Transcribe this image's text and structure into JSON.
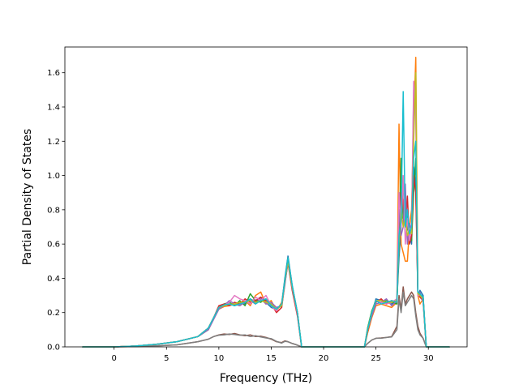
{
  "chart_data": {
    "type": "line",
    "title": "",
    "xlabel": "Frequency (THz)",
    "ylabel": "Partial Density of States",
    "xlim": [
      -4.7,
      33.7
    ],
    "ylim": [
      0.0,
      1.75
    ],
    "xticks": [
      0,
      5,
      10,
      15,
      20,
      25,
      30
    ],
    "yticks": [
      0.0,
      0.2,
      0.4,
      0.6,
      0.8,
      1.0,
      1.2,
      1.4,
      1.6
    ],
    "grid": false,
    "legend": "none",
    "colors": [
      "#1f77b4",
      "#ff7f0e",
      "#2ca02c",
      "#d62728",
      "#9467bd",
      "#8c564b",
      "#e377c2",
      "#7f7f7f",
      "#bcbd22",
      "#17becf"
    ],
    "series": [
      {
        "x": [
          -3,
          0,
          2,
          4,
          6,
          8,
          9,
          9.5,
          10,
          10.5,
          11,
          11.5,
          12,
          12.5,
          13,
          13.5,
          14,
          14.5,
          15,
          15.5,
          16,
          16.3,
          16.6,
          17,
          17.5,
          17.9,
          18.5,
          23.9,
          24.2,
          24.6,
          25,
          25.5,
          26,
          26.5,
          27,
          27.2,
          27.4,
          27.6,
          27.8,
          28,
          28.2,
          28.4,
          28.6,
          28.8,
          29,
          29.2,
          29.5,
          29.8,
          30.2,
          32
        ],
        "y": [
          0,
          0,
          0.005,
          0.015,
          0.03,
          0.06,
          0.11,
          0.17,
          0.23,
          0.24,
          0.25,
          0.245,
          0.26,
          0.25,
          0.28,
          0.26,
          0.29,
          0.26,
          0.23,
          0.22,
          0.25,
          0.4,
          0.53,
          0.36,
          0.2,
          0,
          0,
          0,
          0.1,
          0.2,
          0.28,
          0.27,
          0.26,
          0.25,
          0.27,
          0.52,
          0.7,
          0.95,
          0.8,
          0.75,
          0.65,
          0.6,
          1.05,
          0.95,
          0.3,
          0.33,
          0.3,
          0,
          0,
          0
        ]
      },
      {
        "x": [
          -3,
          0,
          2,
          4,
          6,
          8,
          9,
          9.5,
          10,
          10.5,
          11,
          11.5,
          12,
          12.5,
          13,
          13.5,
          14,
          14.5,
          15,
          15.5,
          16,
          16.3,
          16.6,
          17,
          17.5,
          17.9,
          18.5,
          23.9,
          24.2,
          24.6,
          25,
          25.5,
          26,
          26.5,
          27,
          27.2,
          27.4,
          27.6,
          27.8,
          28,
          28.2,
          28.4,
          28.6,
          28.8,
          29,
          29.2,
          29.5,
          29.8,
          30.2,
          32
        ],
        "y": [
          0,
          0,
          0.005,
          0.015,
          0.03,
          0.06,
          0.11,
          0.17,
          0.22,
          0.235,
          0.24,
          0.25,
          0.24,
          0.27,
          0.24,
          0.3,
          0.32,
          0.25,
          0.27,
          0.21,
          0.26,
          0.38,
          0.5,
          0.34,
          0.19,
          0,
          0,
          0,
          0.08,
          0.17,
          0.24,
          0.25,
          0.24,
          0.23,
          0.26,
          1.3,
          0.6,
          0.55,
          0.5,
          0.5,
          0.7,
          0.8,
          1.3,
          1.69,
          0.3,
          0.25,
          0.28,
          0,
          0,
          0
        ]
      },
      {
        "x": [
          -3,
          0,
          2,
          4,
          6,
          8,
          9,
          9.5,
          10,
          10.5,
          11,
          11.5,
          12,
          12.5,
          13,
          13.5,
          14,
          14.5,
          15,
          15.5,
          16,
          16.3,
          16.6,
          17,
          17.5,
          17.9,
          18.5,
          23.9,
          24.2,
          24.6,
          25,
          25.5,
          26,
          26.5,
          27,
          27.2,
          27.4,
          27.6,
          27.8,
          28,
          28.2,
          28.4,
          28.6,
          28.8,
          29,
          29.2,
          29.5,
          29.8,
          30.2,
          32
        ],
        "y": [
          0,
          0,
          0.005,
          0.015,
          0.03,
          0.06,
          0.1,
          0.17,
          0.23,
          0.25,
          0.26,
          0.24,
          0.27,
          0.24,
          0.31,
          0.27,
          0.26,
          0.28,
          0.24,
          0.22,
          0.24,
          0.39,
          0.52,
          0.35,
          0.2,
          0,
          0,
          0,
          0.11,
          0.21,
          0.27,
          0.26,
          0.27,
          0.26,
          0.25,
          0.6,
          1.1,
          0.75,
          0.85,
          0.7,
          0.65,
          0.62,
          0.9,
          1.1,
          0.32,
          0.3,
          0.29,
          0,
          0,
          0
        ]
      },
      {
        "x": [
          -3,
          0,
          2,
          4,
          6,
          8,
          9,
          9.5,
          10,
          10.5,
          11,
          11.5,
          12,
          12.5,
          13,
          13.5,
          14,
          14.5,
          15,
          15.5,
          16,
          16.3,
          16.6,
          17,
          17.5,
          17.9,
          18.5,
          23.9,
          24.2,
          24.6,
          25,
          25.5,
          26,
          26.5,
          27,
          27.2,
          27.4,
          27.6,
          27.8,
          28,
          28.2,
          28.4,
          28.6,
          28.8,
          29,
          29.2,
          29.5,
          29.8,
          30.2,
          32
        ],
        "y": [
          0,
          0,
          0.005,
          0.015,
          0.03,
          0.06,
          0.11,
          0.17,
          0.24,
          0.25,
          0.24,
          0.26,
          0.25,
          0.28,
          0.26,
          0.27,
          0.29,
          0.27,
          0.25,
          0.2,
          0.23,
          0.37,
          0.49,
          0.33,
          0.18,
          0,
          0,
          0,
          0.09,
          0.19,
          0.26,
          0.28,
          0.25,
          0.27,
          0.26,
          0.7,
          0.9,
          0.85,
          0.7,
          0.88,
          0.6,
          0.65,
          1.0,
          0.9,
          0.31,
          0.29,
          0.27,
          0,
          0,
          0
        ]
      },
      {
        "x": [
          -3,
          0,
          2,
          4,
          6,
          8,
          9,
          9.5,
          10,
          10.5,
          11,
          11.5,
          12,
          12.5,
          13,
          13.5,
          14,
          14.5,
          15,
          15.5,
          16,
          16.3,
          16.6,
          17,
          17.5,
          17.9,
          18.5,
          23.9,
          24.2,
          24.6,
          25,
          25.5,
          26,
          26.5,
          27,
          27.2,
          27.4,
          27.6,
          27.8,
          28,
          28.2,
          28.4,
          28.6,
          28.8,
          29,
          29.2,
          29.5,
          29.8,
          30.2,
          32
        ],
        "y": [
          0,
          0,
          0.005,
          0.015,
          0.03,
          0.06,
          0.1,
          0.16,
          0.22,
          0.24,
          0.27,
          0.25,
          0.24,
          0.26,
          0.27,
          0.25,
          0.28,
          0.25,
          0.26,
          0.23,
          0.24,
          0.36,
          0.5,
          0.34,
          0.2,
          0,
          0,
          0,
          0.1,
          0.18,
          0.25,
          0.26,
          0.28,
          0.24,
          0.27,
          0.8,
          0.65,
          0.7,
          0.95,
          0.6,
          0.72,
          0.68,
          1.5,
          1.45,
          0.3,
          0.32,
          0.26,
          0,
          0,
          0
        ]
      },
      {
        "x": [
          -3,
          0,
          2,
          4,
          6,
          8,
          9,
          9.5,
          10,
          10.5,
          11,
          11.5,
          12,
          12.5,
          13,
          13.5,
          14,
          14.5,
          15,
          15.5,
          16,
          16.3,
          16.6,
          17,
          17.5,
          17.9,
          18.5,
          23.9,
          24.2,
          24.6,
          25,
          25.5,
          26,
          26.5,
          27,
          27.2,
          27.4,
          27.6,
          27.8,
          28,
          28.2,
          28.4,
          28.6,
          28.8,
          29,
          29.2,
          29.5,
          29.8,
          30.2,
          32
        ],
        "y": [
          0,
          0,
          0.002,
          0.006,
          0.012,
          0.03,
          0.045,
          0.06,
          0.07,
          0.075,
          0.072,
          0.078,
          0.07,
          0.065,
          0.07,
          0.06,
          0.062,
          0.055,
          0.045,
          0.03,
          0.025,
          0.035,
          0.03,
          0.02,
          0.01,
          0,
          0,
          0,
          0.02,
          0.04,
          0.05,
          0.052,
          0.055,
          0.06,
          0.12,
          0.3,
          0.22,
          0.35,
          0.25,
          0.28,
          0.3,
          0.32,
          0.3,
          0.2,
          0.12,
          0.08,
          0.05,
          0,
          0,
          0
        ]
      },
      {
        "x": [
          -3,
          0,
          2,
          4,
          6,
          8,
          9,
          9.5,
          10,
          10.5,
          11,
          11.5,
          12,
          12.5,
          13,
          13.5,
          14,
          14.5,
          15,
          15.5,
          16,
          16.3,
          16.6,
          17,
          17.5,
          17.9,
          18.5,
          23.9,
          24.2,
          24.6,
          25,
          25.5,
          26,
          26.5,
          27,
          27.2,
          27.4,
          27.6,
          27.8,
          28,
          28.2,
          28.4,
          28.6,
          28.8,
          29,
          29.2,
          29.5,
          29.8,
          30.2,
          32
        ],
        "y": [
          0,
          0,
          0.005,
          0.015,
          0.03,
          0.06,
          0.11,
          0.17,
          0.23,
          0.24,
          0.26,
          0.3,
          0.28,
          0.27,
          0.25,
          0.29,
          0.27,
          0.3,
          0.24,
          0.21,
          0.25,
          0.38,
          0.51,
          0.35,
          0.19,
          0,
          0,
          0,
          0.1,
          0.2,
          0.27,
          0.26,
          0.25,
          0.26,
          0.28,
          0.9,
          0.7,
          1.0,
          0.6,
          0.75,
          0.62,
          0.7,
          1.55,
          1.35,
          0.3,
          0.3,
          0.28,
          0,
          0,
          0
        ]
      },
      {
        "x": [
          -3,
          0,
          2,
          4,
          6,
          8,
          9,
          9.5,
          10,
          10.5,
          11,
          11.5,
          12,
          12.5,
          13,
          13.5,
          14,
          14.5,
          15,
          15.5,
          16,
          16.3,
          16.6,
          17,
          17.5,
          17.9,
          18.5,
          23.9,
          24.2,
          24.6,
          25,
          25.5,
          26,
          26.5,
          27,
          27.2,
          27.4,
          27.6,
          27.8,
          28,
          28.2,
          28.4,
          28.6,
          28.8,
          29,
          29.2,
          29.5,
          29.8,
          30.2,
          32
        ],
        "y": [
          0,
          0,
          0.002,
          0.006,
          0.012,
          0.03,
          0.045,
          0.06,
          0.068,
          0.07,
          0.075,
          0.072,
          0.068,
          0.07,
          0.06,
          0.065,
          0.058,
          0.052,
          0.048,
          0.032,
          0.022,
          0.032,
          0.03,
          0.02,
          0.01,
          0,
          0,
          0,
          0.02,
          0.04,
          0.05,
          0.05,
          0.055,
          0.058,
          0.1,
          0.28,
          0.2,
          0.32,
          0.24,
          0.26,
          0.28,
          0.3,
          0.28,
          0.18,
          0.1,
          0.07,
          0.05,
          0,
          0,
          0
        ]
      },
      {
        "x": [
          -3,
          0,
          2,
          4,
          6,
          8,
          9,
          9.5,
          10,
          10.5,
          11,
          11.5,
          12,
          12.5,
          13,
          13.5,
          14,
          14.5,
          15,
          15.5,
          16,
          16.3,
          16.6,
          17,
          17.5,
          17.9,
          18.5,
          23.9,
          24.2,
          24.6,
          25,
          25.5,
          26,
          26.5,
          27,
          27.2,
          27.4,
          27.6,
          27.8,
          28,
          28.2,
          28.4,
          28.6,
          28.8,
          29,
          29.2,
          29.5,
          29.8,
          30.2,
          32
        ],
        "y": [
          0,
          0,
          0.005,
          0.015,
          0.03,
          0.06,
          0.11,
          0.17,
          0.23,
          0.24,
          0.25,
          0.25,
          0.26,
          0.26,
          0.27,
          0.26,
          0.27,
          0.26,
          0.25,
          0.22,
          0.24,
          0.38,
          0.5,
          0.35,
          0.2,
          0,
          0,
          0,
          0.1,
          0.2,
          0.27,
          0.27,
          0.26,
          0.26,
          0.27,
          0.6,
          0.8,
          0.7,
          0.75,
          0.65,
          0.68,
          0.66,
          1.2,
          1.6,
          0.31,
          0.3,
          0.28,
          0,
          0,
          0
        ]
      },
      {
        "x": [
          -3,
          0,
          2,
          4,
          6,
          8,
          9,
          9.5,
          10,
          10.5,
          11,
          11.5,
          12,
          12.5,
          13,
          13.5,
          14,
          14.5,
          15,
          15.5,
          16,
          16.3,
          16.6,
          17,
          17.5,
          17.9,
          18.5,
          23.9,
          24.2,
          24.6,
          25,
          25.5,
          26,
          26.5,
          27,
          27.2,
          27.4,
          27.6,
          27.8,
          28,
          28.2,
          28.4,
          28.6,
          28.8,
          29,
          29.2,
          29.5,
          29.8,
          30.2,
          32
        ],
        "y": [
          0,
          0,
          0.005,
          0.015,
          0.03,
          0.06,
          0.11,
          0.17,
          0.23,
          0.245,
          0.25,
          0.24,
          0.25,
          0.26,
          0.28,
          0.25,
          0.27,
          0.28,
          0.24,
          0.22,
          0.25,
          0.39,
          0.52,
          0.36,
          0.2,
          0,
          0,
          0,
          0.1,
          0.2,
          0.27,
          0.25,
          0.26,
          0.27,
          0.26,
          0.65,
          0.75,
          1.49,
          0.7,
          0.8,
          0.66,
          0.7,
          1.1,
          1.2,
          0.32,
          0.31,
          0.29,
          0,
          0,
          0
        ]
      }
    ]
  }
}
